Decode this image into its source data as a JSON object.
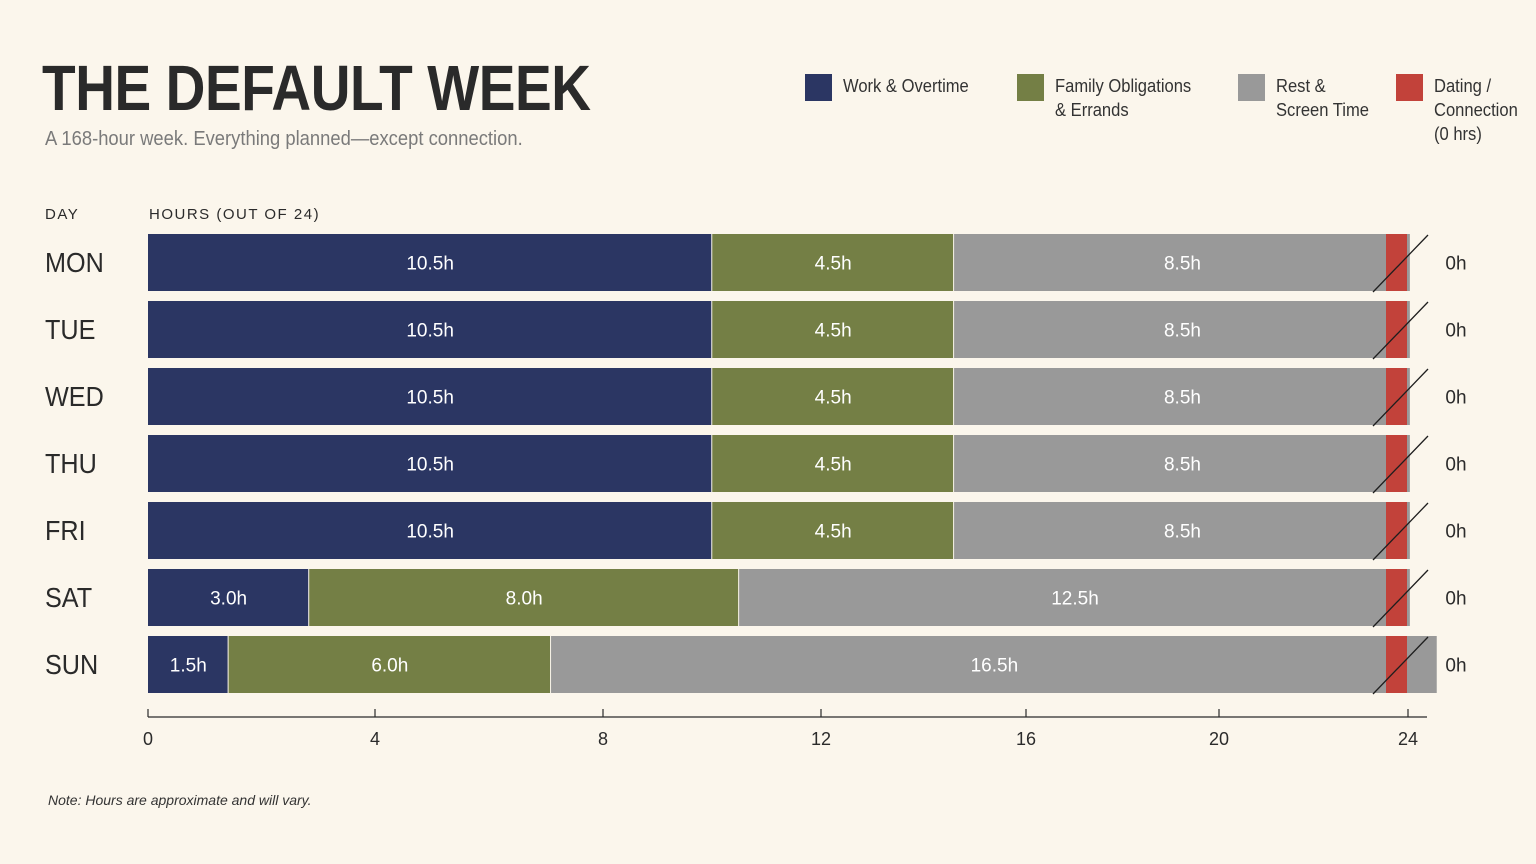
{
  "title": "THE DEFAULT WEEK",
  "subtitle": "A 168-hour week. Everything planned—except connection.",
  "note": "Note: Hours are approximate and will vary.",
  "column_headers": {
    "day": "DAY",
    "hours": "HOURS (OUT OF 24)"
  },
  "colors": {
    "work": "#2b3663",
    "family": "#747f45",
    "rest": "#999999",
    "dating": "#c2423a",
    "axis": "#2b2b2b",
    "background": "#fbf6ec"
  },
  "legend": [
    {
      "key": "work",
      "label": "Work & Overtime"
    },
    {
      "key": "family",
      "label": "Family Obligations\n& Errands"
    },
    {
      "key": "rest",
      "label": "Rest &\nScreen Time"
    },
    {
      "key": "dating",
      "label": "Dating /\nConnection\n(0 hrs)"
    }
  ],
  "chart_data": {
    "type": "bar",
    "orientation": "horizontal",
    "stacked": true,
    "title": "THE DEFAULT WEEK",
    "subtitle": "A 168-hour week. Everything planned—except connection.",
    "ylabel": "DAY",
    "xlabel": "HOURS (OUT OF 24)",
    "xlim": [
      0,
      24
    ],
    "xticks": [
      0,
      4,
      8,
      12,
      16,
      20,
      24
    ],
    "categories": [
      "MON",
      "TUE",
      "WED",
      "THU",
      "FRI",
      "SAT",
      "SUN"
    ],
    "series": [
      {
        "name": "Work & Overtime",
        "key": "work",
        "values": [
          10.5,
          10.5,
          10.5,
          10.5,
          10.5,
          3.0,
          1.5
        ],
        "labels": [
          "10.5h",
          "10.5h",
          "10.5h",
          "10.5h",
          "10.5h",
          "3.0h",
          "1.5h"
        ]
      },
      {
        "name": "Family Obligations & Errands",
        "key": "family",
        "values": [
          4.5,
          4.5,
          4.5,
          4.5,
          4.5,
          8.0,
          6.0
        ],
        "labels": [
          "4.5h",
          "4.5h",
          "4.5h",
          "4.5h",
          "4.5h",
          "8.0h",
          "6.0h"
        ]
      },
      {
        "name": "Rest & Screen Time",
        "key": "rest",
        "values": [
          8.5,
          8.5,
          8.5,
          8.5,
          8.5,
          12.5,
          16.5
        ],
        "labels": [
          "8.5h",
          "8.5h",
          "8.5h",
          "8.5h",
          "8.5h",
          "12.5h",
          "16.5h"
        ]
      },
      {
        "name": "Dating / Connection (0 hrs)",
        "key": "dating",
        "values": [
          0,
          0,
          0,
          0,
          0,
          0,
          0
        ],
        "labels": [
          "0h",
          "0h",
          "0h",
          "0h",
          "0h",
          "0h",
          "0h"
        ]
      }
    ],
    "grid": false,
    "legend_position": "top-right"
  }
}
